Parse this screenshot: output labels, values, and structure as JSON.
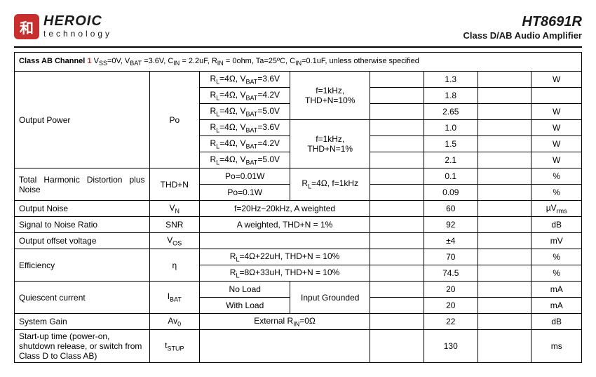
{
  "header": {
    "logo_glyph": "和",
    "logo_main": "HEROIC",
    "logo_sub": "technology",
    "part_number": "HT8691R",
    "part_desc": "Class D/AB Audio Amplifier"
  },
  "table": {
    "section_label": "Class AB Channel",
    "footnote_marker": "1",
    "conditions": "V<sub>SS</sub>=0V, V<sub>BAT</sub> =3.6V, C<sub>IN</sub> = 2.2uF, R<sub>IN</sub> = 0ohm, Ta=25ºC, C<sub>IN</sub>=0.1uF, unless otherwise specified",
    "rows": {
      "output_power": {
        "param": "Output Power",
        "symbol": "Po",
        "cond_a": {
          "r1": "R<sub>L</sub>=4Ω, V<sub>BAT</sub>=3.6V",
          "r2": "R<sub>L</sub>=4Ω, V<sub>BAT</sub>=4.2V",
          "r3": "R<sub>L</sub>=4Ω, V<sub>BAT</sub>=5.0V"
        },
        "cond_b": {
          "r1": "R<sub>L</sub>=4Ω, V<sub>BAT</sub>=3.6V",
          "r2": "R<sub>L</sub>=4Ω, V<sub>BAT</sub>=4.2V",
          "r3": "R<sub>L</sub>=4Ω, V<sub>BAT</sub>=5.0V"
        },
        "cond2_a": "f=1kHz, THD+N=10%",
        "cond2_b": "f=1kHz, THD+N=1%",
        "typ": [
          "1.3",
          "1.8",
          "2.65",
          "1.0",
          "1.5",
          "2.1"
        ],
        "unit": "W"
      },
      "thdn": {
        "param": "Total Harmonic Distortion plus Noise",
        "symbol": "THD+N",
        "c1": [
          "Po=0.01W",
          "Po=0.1W"
        ],
        "c2": "R<sub>L</sub>=4Ω, f=1kHz",
        "typ": [
          "0.1",
          "0.09"
        ],
        "unit": "%"
      },
      "vn": {
        "param": "Output Noise",
        "symbol": "V<sub>N</sub>",
        "cond": "f=20Hz~20kHz, A weighted",
        "typ": "60",
        "unit": "µV<sub>rms</sub>"
      },
      "snr": {
        "param": "Signal to Noise Ratio",
        "symbol": "SNR",
        "cond": "A weighted, THD+N = 1%",
        "typ": "92",
        "unit": "dB"
      },
      "vos": {
        "param": "Output offset voltage",
        "symbol": "V<sub>OS</sub>",
        "cond": "",
        "typ": "±4",
        "unit": "mV"
      },
      "eff": {
        "param": "Efficiency",
        "symbol": "η",
        "c": [
          "R<sub>L</sub>=4Ω+22uH, THD+N = 10%",
          "R<sub>L</sub>=8Ω+33uH, THD+N = 10%"
        ],
        "typ": [
          "70",
          "74.5"
        ],
        "unit": "%"
      },
      "ibat": {
        "param": "Quiescent current",
        "symbol": "I<sub>BAT</sub>",
        "c1": [
          "No Load",
          "With Load"
        ],
        "c2": "Input Grounded",
        "typ": [
          "20",
          "20"
        ],
        "unit": "mA"
      },
      "gain": {
        "param": "System Gain",
        "symbol": "Av<sub>0</sub>",
        "cond": "External R<sub>IN</sub>=0Ω",
        "typ": "22",
        "unit": "dB"
      },
      "tstup": {
        "param": "Start-up time (power-on, shutdown release, or switch from Class D to Class AB)",
        "symbol": "t<sub>STUP</sub>",
        "cond": "",
        "typ": "130",
        "unit": "ms"
      }
    }
  }
}
